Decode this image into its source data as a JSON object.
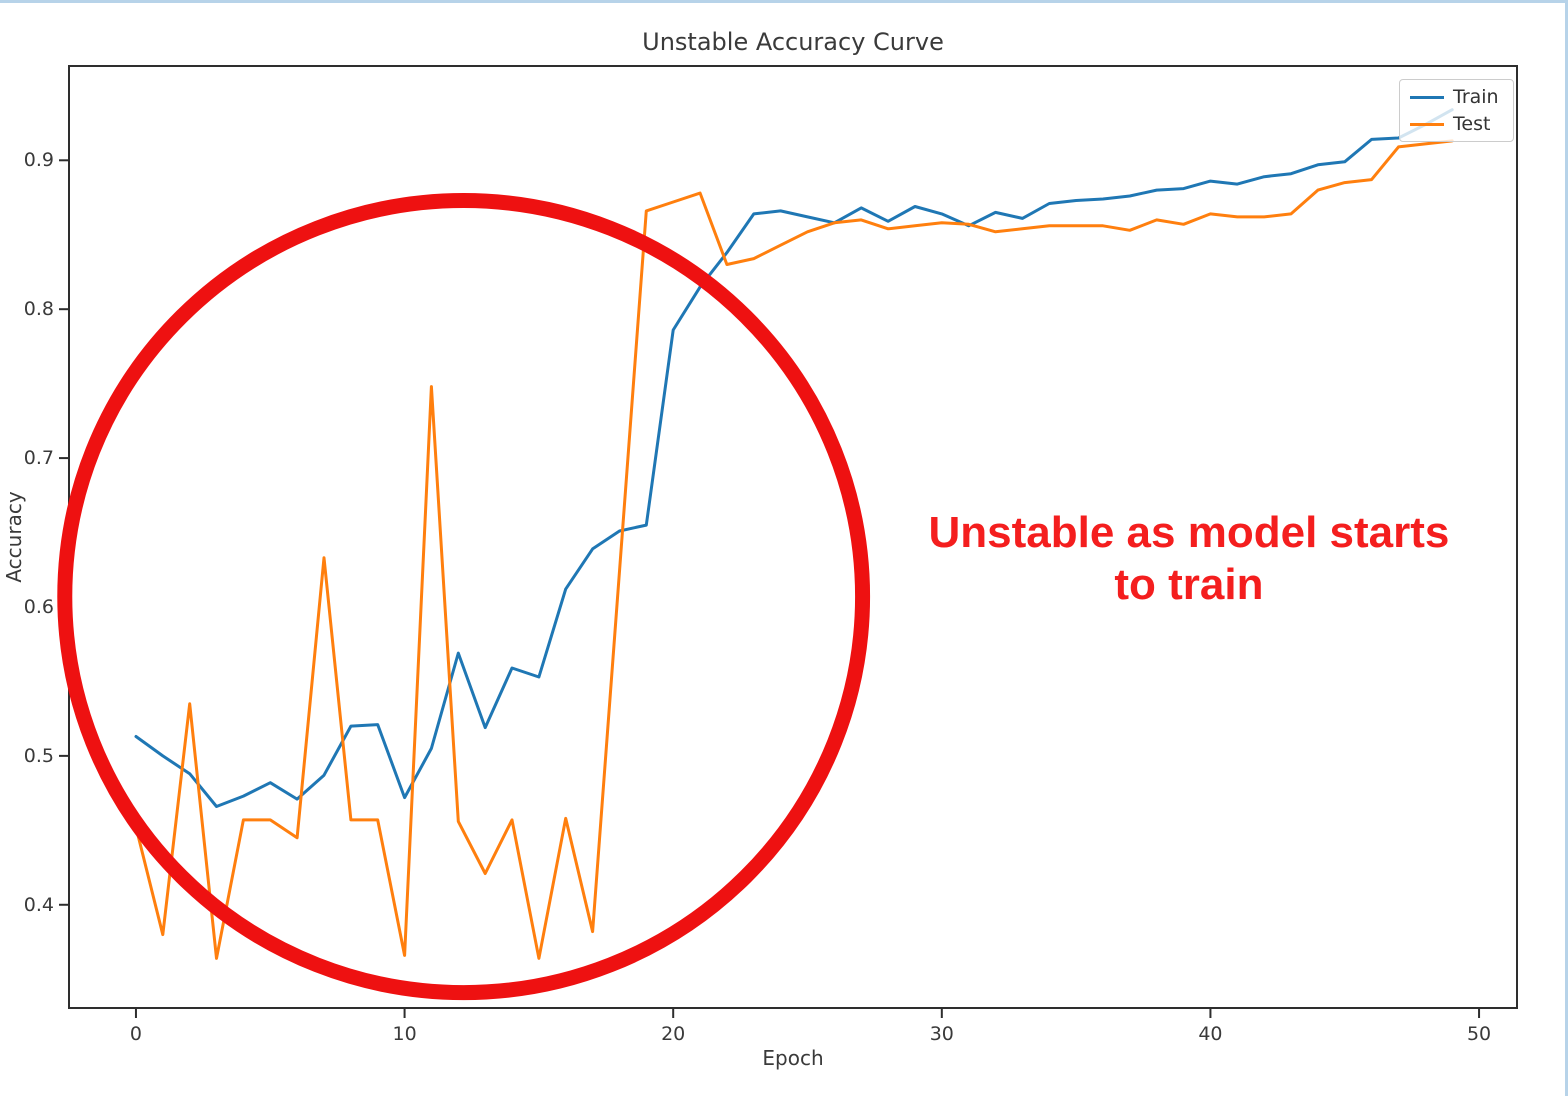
{
  "figure": {
    "title": "Unstable Accuracy Curve",
    "xlabel": "Epoch",
    "ylabel": "Accuracy"
  },
  "legend": {
    "items": [
      {
        "label": "Train",
        "color": "#1f77b4"
      },
      {
        "label": "Test",
        "color": "#ff7f0e"
      }
    ]
  },
  "annotation": {
    "line1": "Unstable as model starts",
    "line2": "to train",
    "color": "#f41e1e"
  },
  "chart_data": {
    "type": "line",
    "title": "Unstable Accuracy Curve",
    "xlabel": "Epoch",
    "ylabel": "Accuracy",
    "grid": false,
    "legend_position": "upper right",
    "xlim": [
      -2.53,
      51.45
    ],
    "ylim": [
      0.33,
      0.964
    ],
    "x_ticks": [
      0,
      10,
      20,
      30,
      40,
      50
    ],
    "x_tick_labels": [
      "0",
      "10",
      "20",
      "30",
      "40",
      "50"
    ],
    "y_ticks": [
      0.4,
      0.5,
      0.6,
      0.7,
      0.8,
      0.9
    ],
    "y_tick_labels": [
      "0.4",
      "0.5",
      "0.6",
      "0.7",
      "0.8",
      "0.9"
    ],
    "x": [
      0,
      1,
      2,
      3,
      4,
      5,
      6,
      7,
      8,
      9,
      10,
      11,
      12,
      13,
      14,
      15,
      16,
      17,
      18,
      19,
      20,
      21,
      22,
      23,
      24,
      25,
      26,
      27,
      28,
      29,
      30,
      31,
      32,
      33,
      34,
      35,
      36,
      37,
      38,
      39,
      40,
      41,
      42,
      43,
      44,
      45,
      46,
      47,
      48,
      49
    ],
    "series": [
      {
        "name": "Train",
        "color": "#1f77b4",
        "values": [
          0.513,
          0.5,
          0.488,
          0.466,
          0.473,
          0.482,
          0.471,
          0.487,
          0.52,
          0.521,
          0.472,
          0.505,
          0.569,
          0.519,
          0.559,
          0.553,
          0.612,
          0.639,
          0.651,
          0.655,
          0.786,
          0.815,
          0.838,
          0.864,
          0.866,
          0.862,
          0.858,
          0.868,
          0.859,
          0.869,
          0.864,
          0.856,
          0.865,
          0.861,
          0.871,
          0.873,
          0.874,
          0.876,
          0.88,
          0.881,
          0.886,
          0.884,
          0.889,
          0.891,
          0.897,
          0.899,
          0.914,
          0.915,
          0.924,
          0.934
        ]
      },
      {
        "name": "Test",
        "color": "#ff7f0e",
        "values": [
          0.452,
          0.38,
          0.535,
          0.364,
          0.457,
          0.457,
          0.445,
          0.633,
          0.457,
          0.457,
          0.366,
          0.748,
          0.456,
          0.421,
          0.457,
          0.364,
          0.458,
          0.382,
          0.624,
          0.866,
          0.872,
          0.878,
          0.83,
          0.834,
          0.843,
          0.852,
          0.858,
          0.86,
          0.854,
          0.856,
          0.858,
          0.857,
          0.852,
          0.854,
          0.856,
          0.856,
          0.856,
          0.853,
          0.86,
          0.857,
          0.864,
          0.862,
          0.862,
          0.864,
          0.88,
          0.885,
          0.887,
          0.909,
          0.911,
          0.913
        ]
      }
    ],
    "annotations": {
      "circle": {
        "center_x": 12.2,
        "center_y": 0.607,
        "radius_x": 14.85,
        "radius_y": 0.266,
        "color": "#ee1111",
        "stroke_width": 15
      },
      "text": {
        "x": 39.2,
        "y": 0.632,
        "content": "Unstable as model starts\nto train",
        "color": "#f41e1e"
      }
    },
    "axis_style": {
      "spine_color": "#2e2e2e",
      "tick_color": "#2e2e2e",
      "line_width": 3
    }
  }
}
